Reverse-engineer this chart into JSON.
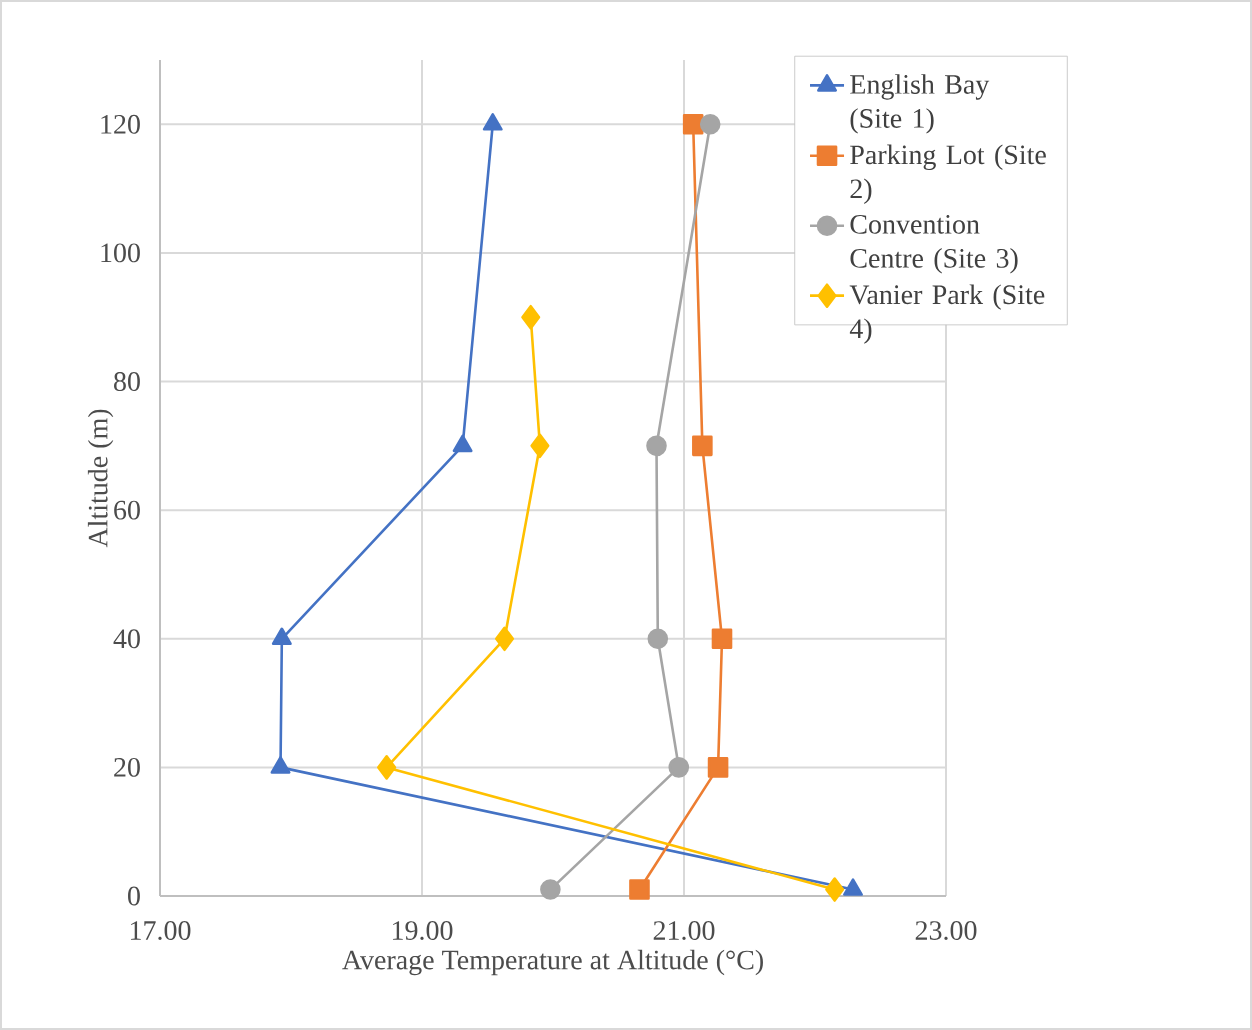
{
  "chart_data": {
    "type": "line",
    "xlabel": "Average Temperature at Altitude (°C)",
    "ylabel": "Altitude (m)",
    "xlim": [
      17,
      23
    ],
    "xticks": [
      {
        "value": 17,
        "label": "17.00"
      },
      {
        "value": 19,
        "label": "19.00"
      },
      {
        "value": 21,
        "label": "21.00"
      },
      {
        "value": 23,
        "label": "23.00"
      }
    ],
    "ylim": [
      0,
      130
    ],
    "yticks": [
      0,
      20,
      40,
      60,
      80,
      100,
      120
    ],
    "grid": true,
    "legend": "right",
    "line_style": "solid",
    "series": [
      {
        "name": "English Bay (Site 1)",
        "color": "#4472c4",
        "marker": "triangle",
        "x": [
          22.29,
          17.92,
          17.93,
          19.31,
          19.54
        ],
        "values": [
          1,
          20,
          40,
          70,
          120
        ]
      },
      {
        "name": "Parking Lot (Site 2)",
        "color": "#ed7d31",
        "marker": "square",
        "x": [
          20.66,
          21.26,
          21.29,
          21.14,
          21.07
        ],
        "values": [
          1,
          20,
          40,
          70,
          120
        ]
      },
      {
        "name": "Convention Centre (Site 3)",
        "color": "#a5a5a5",
        "marker": "circle",
        "x": [
          19.98,
          20.96,
          20.8,
          20.79,
          21.2
        ],
        "values": [
          1,
          20,
          40,
          70,
          120
        ]
      },
      {
        "name": "Vanier Park (Site 4)",
        "color": "#ffc000",
        "marker": "diamond",
        "x": [
          22.15,
          18.73,
          19.63,
          19.9,
          19.83
        ],
        "values": [
          1,
          20,
          40,
          70,
          90
        ]
      }
    ]
  }
}
